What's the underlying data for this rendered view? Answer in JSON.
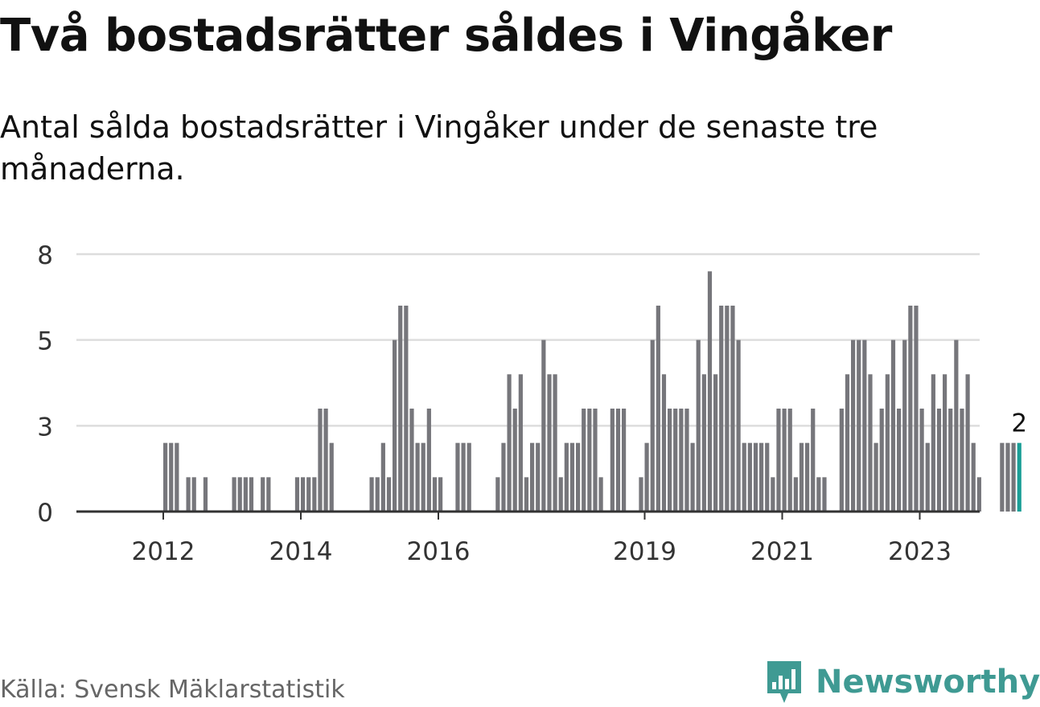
{
  "title": "Två bostadsrätter såldes i Vingåker",
  "subtitle": "Antal sålda bostadsrätter i Vingåker under de senaste tre månaderna.",
  "source": "Källa: Svensk Mäklarstatistik",
  "brand": {
    "name": "Newsworthy",
    "color": "#3f9a93"
  },
  "colors": {
    "bar": "#76767b",
    "highlight": "#1a9e96",
    "grid": "#dddddd",
    "axis": "#333333"
  },
  "chart_data": {
    "type": "bar",
    "xlabel": "",
    "ylabel": "",
    "ylim": [
      0,
      7.5
    ],
    "grid": true,
    "y_ticks": [
      {
        "value": 0,
        "label": "0"
      },
      {
        "value": 2.5,
        "label": "3"
      },
      {
        "value": 5,
        "label": "5"
      },
      {
        "value": 7.5,
        "label": "8"
      }
    ],
    "x_ticks": [
      {
        "index": 8,
        "label": "2012"
      },
      {
        "index": 32,
        "label": "2014"
      },
      {
        "index": 56,
        "label": "2016"
      },
      {
        "index": 92,
        "label": "2019"
      },
      {
        "index": 116,
        "label": "2021"
      },
      {
        "index": 140,
        "label": "2023"
      }
    ],
    "values": [
      0,
      0,
      0,
      0,
      0,
      0,
      0,
      0,
      2,
      2,
      2,
      0,
      1,
      1,
      0,
      1,
      0,
      0,
      0,
      0,
      1,
      1,
      1,
      1,
      0,
      1,
      1,
      0,
      0,
      0,
      0,
      1,
      1,
      1,
      1,
      3,
      3,
      2,
      0,
      0,
      0,
      0,
      0,
      0,
      1,
      1,
      2,
      1,
      5,
      6,
      6,
      3,
      2,
      2,
      3,
      1,
      1,
      0,
      0,
      2,
      2,
      2,
      0,
      0,
      0,
      0,
      1,
      2,
      4,
      3,
      4,
      1,
      2,
      2,
      5,
      4,
      4,
      1,
      2,
      2,
      2,
      3,
      3,
      3,
      1,
      0,
      3,
      3,
      3,
      0,
      0,
      1,
      2,
      5,
      6,
      4,
      3,
      3,
      3,
      3,
      2,
      5,
      4,
      7,
      4,
      6,
      6,
      6,
      5,
      2,
      2,
      2,
      2,
      2,
      1,
      3,
      3,
      3,
      1,
      2,
      2,
      3,
      1,
      1,
      0,
      0,
      3,
      4,
      5,
      5,
      5,
      4,
      2,
      3,
      4,
      5,
      3,
      5,
      6,
      6,
      3,
      2,
      4,
      3,
      4,
      3,
      5,
      3,
      4,
      2,
      1,
      0,
      0,
      0,
      2,
      2,
      2,
      2
    ],
    "highlight_index": 157,
    "highlight_label": "2"
  }
}
